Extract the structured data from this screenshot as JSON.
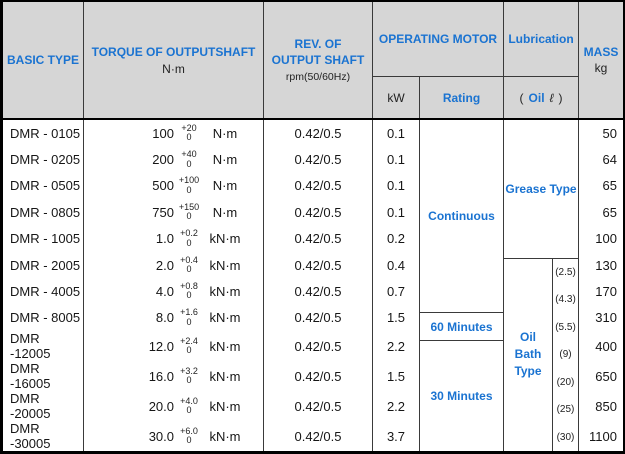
{
  "header": {
    "basic_type": "BASIC TYPE",
    "torque_title": "TORQUE OF OUTPUTSHAFT",
    "torque_unit": "N·m",
    "rev_line1": "REV. OF",
    "rev_line2": "OUTPUT SHAFT",
    "rev_sub": "rpm(50/60Hz)",
    "operating_motor": "OPERATING MOTOR",
    "kw": "kW",
    "rating": "Rating",
    "lubrication": "Lubrication",
    "oil_paren_open": "(",
    "oil_label": "Oil",
    "oil_liter_symbol": "ℓ",
    "oil_paren_close": ")",
    "mass": "MASS",
    "mass_unit": "kg"
  },
  "rows": [
    {
      "type": "DMR - 0105",
      "torque": "100",
      "tol_hi": "+20",
      "tol_lo": "0",
      "unit": "N·m",
      "rev": "0.42/0.5",
      "kw": "0.1",
      "mass": "50"
    },
    {
      "type": "DMR - 0205",
      "torque": "200",
      "tol_hi": "+40",
      "tol_lo": "0",
      "unit": "N·m",
      "rev": "0.42/0.5",
      "kw": "0.1",
      "mass": "64"
    },
    {
      "type": "DMR - 0505",
      "torque": "500",
      "tol_hi": "+100",
      "tol_lo": "0",
      "unit": "N·m",
      "rev": "0.42/0.5",
      "kw": "0.1",
      "mass": "65"
    },
    {
      "type": "DMR - 0805",
      "torque": "750",
      "tol_hi": "+150",
      "tol_lo": "0",
      "unit": "N·m",
      "rev": "0.42/0.5",
      "kw": "0.1",
      "mass": "65"
    },
    {
      "type": "DMR - 1005",
      "torque": "1.0",
      "tol_hi": "+0.2",
      "tol_lo": "0",
      "unit": "kN·m",
      "rev": "0.42/0.5",
      "kw": "0.2",
      "mass": "100"
    },
    {
      "type": "DMR - 2005",
      "torque": "2.0",
      "tol_hi": "+0.4",
      "tol_lo": "0",
      "unit": "kN·m",
      "rev": "0.42/0.5",
      "kw": "0.4",
      "mass": "130"
    },
    {
      "type": "DMR - 4005",
      "torque": "4.0",
      "tol_hi": "+0.8",
      "tol_lo": "0",
      "unit": "kN·m",
      "rev": "0.42/0.5",
      "kw": "0.7",
      "mass": "170"
    },
    {
      "type": "DMR - 8005",
      "torque": "8.0",
      "tol_hi": "+1.6",
      "tol_lo": "0",
      "unit": "kN·m",
      "rev": "0.42/0.5",
      "kw": "1.5",
      "mass": "310"
    },
    {
      "type": "DMR -12005",
      "torque": "12.0",
      "tol_hi": "+2.4",
      "tol_lo": "0",
      "unit": "kN·m",
      "rev": "0.42/0.5",
      "kw": "2.2",
      "mass": "400"
    },
    {
      "type": "DMR -16005",
      "torque": "16.0",
      "tol_hi": "+3.2",
      "tol_lo": "0",
      "unit": "kN·m",
      "rev": "0.42/0.5",
      "kw": "1.5",
      "mass": "650"
    },
    {
      "type": "DMR -20005",
      "torque": "20.0",
      "tol_hi": "+4.0",
      "tol_lo": "0",
      "unit": "kN·m",
      "rev": "0.42/0.5",
      "kw": "2.2",
      "mass": "850"
    },
    {
      "type": "DMR -30005",
      "torque": "30.0",
      "tol_hi": "+6.0",
      "tol_lo": "0",
      "unit": "kN·m",
      "rev": "0.42/0.5",
      "kw": "3.7",
      "mass": "1100"
    }
  ],
  "rating": {
    "continuous": "Continuous",
    "sixty_minutes": "60 Minutes",
    "thirty_minutes": "30 Minutes"
  },
  "lubrication": {
    "grease": "Grease Type",
    "oil_bath": "Oil Bath Type",
    "amounts": [
      "(2.5)",
      "(4.3)",
      "(5.5)",
      "(9)",
      "(20)",
      "(25)",
      "(30)"
    ]
  },
  "colors": {
    "accent_blue": "#1a73d1",
    "header_bg": "#d6d6d6",
    "border_outer": "#000000",
    "border_inner": "#3a3a3a"
  }
}
